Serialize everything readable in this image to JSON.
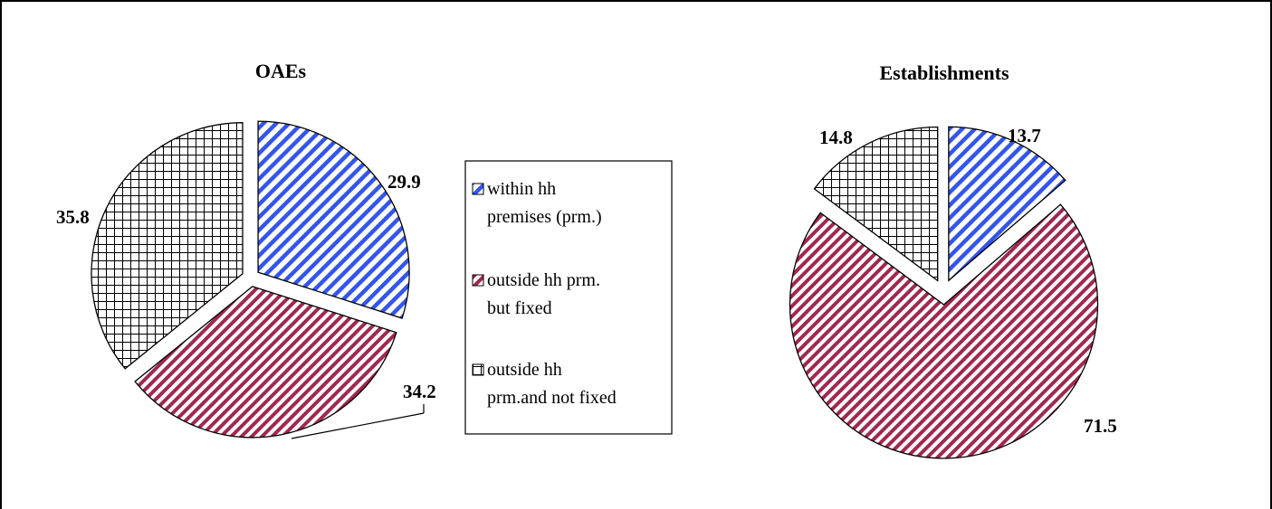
{
  "legend": [
    {
      "name": "within hh premises (prm.)",
      "lines": [
        "within hh",
        "premises (prm.)"
      ],
      "pattern": "pat-blue",
      "color": "#3355ee"
    },
    {
      "name": "outside hh prm. but fixed",
      "lines": [
        "outside hh prm.",
        "but fixed"
      ],
      "pattern": "pat-maroon",
      "color": "#a02850"
    },
    {
      "name": "outside hh prm.and not fixed",
      "lines": [
        "outside hh",
        "prm.and not fixed"
      ],
      "pattern": "pat-grid",
      "color": "#000000"
    }
  ],
  "chart_data": [
    {
      "type": "pie",
      "title": "OAEs",
      "categories": [
        "within hh premises (prm.)",
        "outside hh prm. but fixed",
        "outside hh prm.and not fixed"
      ],
      "values": [
        29.9,
        34.2,
        35.8
      ],
      "labels": [
        "29.9",
        "34.2",
        "35.8"
      ]
    },
    {
      "type": "pie",
      "title": "Establishments",
      "categories": [
        "within hh premises (prm.)",
        "outside hh prm. but fixed",
        "outside hh prm.and not fixed"
      ],
      "values": [
        13.7,
        71.5,
        14.8
      ],
      "labels": [
        "13.7",
        "71.5",
        "14.8"
      ]
    }
  ]
}
